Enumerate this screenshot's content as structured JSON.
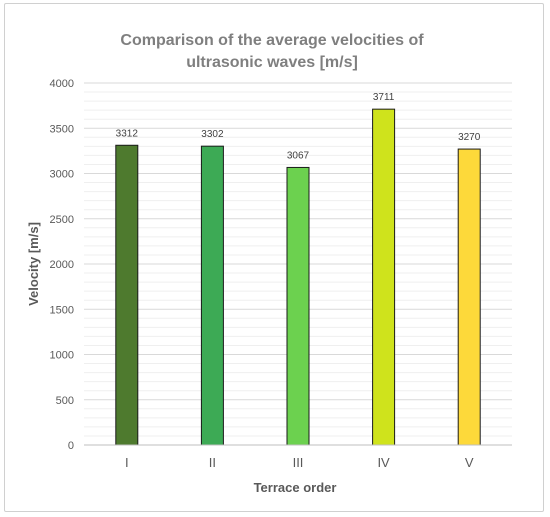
{
  "chart_data": {
    "type": "bar",
    "title_lines": [
      "Comparison of the average velocities of",
      "ultrasonic waves [m/s]"
    ],
    "xlabel": "Terrace order",
    "ylabel": "Velocity [m/s]",
    "categories": [
      "I",
      "II",
      "III",
      "IV",
      "V"
    ],
    "values": [
      3312,
      3302,
      3067,
      3711,
      3270
    ],
    "data_labels": [
      "3312",
      "3302",
      "3067",
      "3711",
      "3270"
    ],
    "ylim": [
      0,
      4000
    ],
    "yticks": [
      "0",
      "500",
      "1000",
      "1500",
      "2000",
      "2500",
      "3000",
      "3500",
      "4000"
    ],
    "minor_step": 100,
    "grid": true,
    "legend": "none",
    "colors": [
      "#4e7a2e",
      "#3daa55",
      "#6cd14f",
      "#cfe31c",
      "#fdd93a"
    ]
  }
}
